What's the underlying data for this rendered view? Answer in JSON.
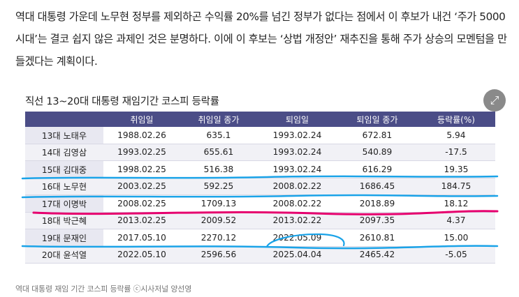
{
  "article": {
    "paragraph": "역대 대통령 가운데 노무현 정부를 제외하곤 수익률 20%를 넘긴 정부가 없다는 점에서 이 후보가 내건 ‘주가 5000시대’는 결코 쉽지 않은 과제인 것은 분명하다. 이에 이 후보는 ‘상법 개정안’ 재추진을 통해 주가 상승의 모멘텀을 만들겠다는 계획이다."
  },
  "figure": {
    "title": "직선 13~20대 대통령 재임기간 코스피 등락률",
    "expand_icon": "expand-arrows-icon",
    "caption": "역대 대통령 재임 기간 코스피 등락률 ⓒ시사저널 양선영",
    "headers": [
      "",
      "취임일",
      "취임일 종가",
      "퇴임일",
      "퇴임일 종가",
      "등락률(%)"
    ],
    "rows": [
      {
        "name": "13대 노태우",
        "start": "1988.02.26",
        "start_index": "635.1",
        "end": "1993.02.24",
        "end_index": "672.81",
        "rate": "5.94"
      },
      {
        "name": "14대 김영삼",
        "start": "1993.02.25",
        "start_index": "655.61",
        "end": "1993.02.24",
        "end_index": "540.89",
        "rate": "-17.5"
      },
      {
        "name": "15대 김대중",
        "start": "1998.02.25",
        "start_index": "516.38",
        "end": "1993.02.24",
        "end_index": "616.29",
        "rate": "19.35"
      },
      {
        "name": "16대 노무현",
        "start": "2003.02.25",
        "start_index": "592.25",
        "end": "2008.02.22",
        "end_index": "1686.45",
        "rate": "184.75"
      },
      {
        "name": "17대 이명박",
        "start": "2008.02.25",
        "start_index": "1709.13",
        "end": "2008.02.22",
        "end_index": "2018.89",
        "rate": "18.12"
      },
      {
        "name": "18대 박근혜",
        "start": "2013.02.25",
        "start_index": "2009.52",
        "end": "2013.02.22",
        "end_index": "2097.35",
        "rate": "4.37"
      },
      {
        "name": "19대 문재인",
        "start": "2017.05.10",
        "start_index": "2270.12",
        "end": "2022.05.09",
        "end_index": "2610.81",
        "rate": "15.00"
      },
      {
        "name": "20대 윤석열",
        "start": "2022.05.10",
        "start_index": "2596.56",
        "end": "2025.04.04",
        "end_index": "2465.42",
        "rate": "-5.05"
      }
    ]
  },
  "colors": {
    "header_bg": "#4b4d87",
    "blue_marker": "#1aa3e8",
    "pink_marker": "#e6006e"
  }
}
